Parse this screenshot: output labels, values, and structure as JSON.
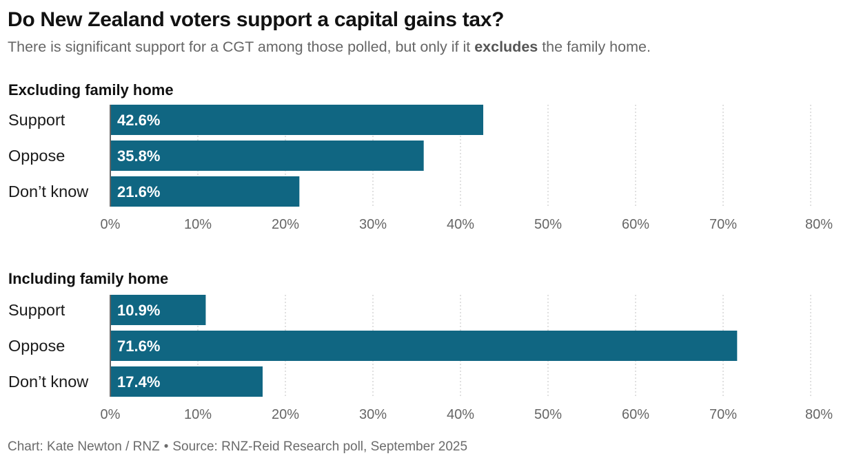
{
  "title": "Do New Zealand voters support a capital gains tax?",
  "subtitle": {
    "before": "There is significant support for a CGT among those polled, but only if it ",
    "bold": "excludes",
    "after": " the family home."
  },
  "footer": {
    "credit": "Chart: Kate Newton / RNZ",
    "separator": "•",
    "source": "Source: RNZ-Reid Research poll, September 2025"
  },
  "colors": {
    "bar": "#106682",
    "bar_label": "#ffffff",
    "grid": "#cccccc",
    "tick": "#666666"
  },
  "chart_data": [
    {
      "type": "bar",
      "orientation": "horizontal",
      "title": "Excluding family home",
      "categories": [
        "Support",
        "Oppose",
        "Don’t know"
      ],
      "values": [
        42.6,
        35.8,
        21.6
      ],
      "value_labels": [
        "42.6%",
        "35.8%",
        "21.6%"
      ],
      "xlim": [
        0,
        80
      ],
      "xticks": [
        0,
        10,
        20,
        30,
        40,
        50,
        60,
        70,
        80
      ],
      "xtick_labels": [
        "0%",
        "10%",
        "20%",
        "30%",
        "40%",
        "50%",
        "60%",
        "70%",
        "80%"
      ],
      "grid": true
    },
    {
      "type": "bar",
      "orientation": "horizontal",
      "title": "Including family home",
      "categories": [
        "Support",
        "Oppose",
        "Don’t know"
      ],
      "values": [
        10.9,
        71.6,
        17.4
      ],
      "value_labels": [
        "10.9%",
        "71.6%",
        "17.4%"
      ],
      "xlim": [
        0,
        80
      ],
      "xticks": [
        0,
        10,
        20,
        30,
        40,
        50,
        60,
        70,
        80
      ],
      "xtick_labels": [
        "0%",
        "10%",
        "20%",
        "30%",
        "40%",
        "50%",
        "60%",
        "70%",
        "80%"
      ],
      "grid": true
    }
  ]
}
